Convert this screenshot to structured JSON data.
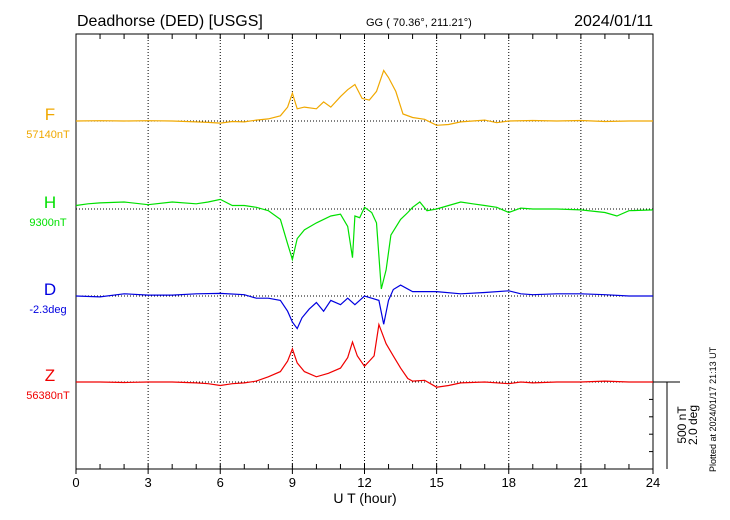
{
  "chart_data": {
    "type": "line",
    "title": "Deadhorse (DED)  [USGS]",
    "coords": "GG ( 70.36°, 211.21°)",
    "date": "2024/01/11",
    "xlabel": "U T (hour)",
    "xlim": [
      0,
      24
    ],
    "xticks": [
      "0",
      "3",
      "6",
      "9",
      "12",
      "15",
      "18",
      "21",
      "24"
    ],
    "grid": "dotted vertical every 3 h",
    "scale_label_nt": "500 nT",
    "scale_label_deg": "2.0 deg",
    "scale_nt": 500,
    "scale_deg": 2.0,
    "plotted_note": "Plotted at 2024/01/17 21:13 UT",
    "series": [
      {
        "name": "F",
        "baseline_label": "57140nT",
        "color": "#f0a800",
        "unit": "nT",
        "points": [
          [
            0,
            0
          ],
          [
            1,
            2
          ],
          [
            2,
            0
          ],
          [
            3,
            2
          ],
          [
            4,
            0
          ],
          [
            5,
            -5
          ],
          [
            5.5,
            -8
          ],
          [
            6,
            -12
          ],
          [
            6.5,
            -3
          ],
          [
            7,
            -5
          ],
          [
            7.5,
            5
          ],
          [
            8,
            12
          ],
          [
            8.5,
            30
          ],
          [
            8.8,
            80
          ],
          [
            9,
            160
          ],
          [
            9.2,
            70
          ],
          [
            9.5,
            80
          ],
          [
            10,
            70
          ],
          [
            10.3,
            110
          ],
          [
            10.6,
            80
          ],
          [
            11,
            140
          ],
          [
            11.3,
            180
          ],
          [
            11.6,
            210
          ],
          [
            11.9,
            130
          ],
          [
            12.2,
            120
          ],
          [
            12.5,
            170
          ],
          [
            12.8,
            290
          ],
          [
            13,
            250
          ],
          [
            13.3,
            170
          ],
          [
            13.6,
            40
          ],
          [
            14,
            20
          ],
          [
            14.5,
            10
          ],
          [
            15,
            -25
          ],
          [
            15.5,
            -20
          ],
          [
            16,
            -5
          ],
          [
            17,
            5
          ],
          [
            17.5,
            -10
          ],
          [
            18,
            0
          ],
          [
            19,
            3
          ],
          [
            20,
            0
          ],
          [
            21,
            3
          ],
          [
            22,
            -3
          ],
          [
            23,
            0
          ],
          [
            24,
            0
          ]
        ]
      },
      {
        "name": "H",
        "baseline_label": "9300nT",
        "color": "#00e000",
        "unit": "nT",
        "points": [
          [
            0,
            20
          ],
          [
            0.5,
            30
          ],
          [
            1,
            35
          ],
          [
            2,
            40
          ],
          [
            3,
            25
          ],
          [
            4,
            40
          ],
          [
            5,
            30
          ],
          [
            5.5,
            40
          ],
          [
            6,
            55
          ],
          [
            6.5,
            20
          ],
          [
            7,
            20
          ],
          [
            7.5,
            10
          ],
          [
            8,
            -10
          ],
          [
            8.5,
            -60
          ],
          [
            8.8,
            -200
          ],
          [
            9,
            -290
          ],
          [
            9.2,
            -170
          ],
          [
            9.5,
            -120
          ],
          [
            10,
            -80
          ],
          [
            10.3,
            -60
          ],
          [
            10.6,
            -40
          ],
          [
            11,
            -30
          ],
          [
            11.3,
            -100
          ],
          [
            11.5,
            -280
          ],
          [
            11.6,
            -40
          ],
          [
            11.8,
            -50
          ],
          [
            12,
            10
          ],
          [
            12.3,
            -20
          ],
          [
            12.5,
            -80
          ],
          [
            12.7,
            -460
          ],
          [
            12.9,
            -350
          ],
          [
            13.1,
            -150
          ],
          [
            13.5,
            -60
          ],
          [
            13.8,
            -20
          ],
          [
            14,
            10
          ],
          [
            14.3,
            40
          ],
          [
            14.6,
            -10
          ],
          [
            15,
            0
          ],
          [
            15.5,
            20
          ],
          [
            16,
            40
          ],
          [
            16.5,
            30
          ],
          [
            17,
            20
          ],
          [
            17.5,
            10
          ],
          [
            18,
            -20
          ],
          [
            18.5,
            5
          ],
          [
            19,
            0
          ],
          [
            20,
            0
          ],
          [
            21,
            -5
          ],
          [
            22,
            -20
          ],
          [
            22.5,
            -40
          ],
          [
            23,
            -10
          ],
          [
            24,
            -5
          ]
        ]
      },
      {
        "name": "D",
        "baseline_label": "-2.3deg",
        "color": "#0000e0",
        "unit": "deg",
        "points": [
          [
            0,
            0
          ],
          [
            1,
            -0.02
          ],
          [
            2,
            0.05
          ],
          [
            3,
            0.02
          ],
          [
            4,
            0.02
          ],
          [
            5,
            0.05
          ],
          [
            6,
            0.06
          ],
          [
            7,
            0.03
          ],
          [
            7.5,
            -0.05
          ],
          [
            8,
            -0.05
          ],
          [
            8.5,
            -0.1
          ],
          [
            8.8,
            -0.35
          ],
          [
            9,
            -0.6
          ],
          [
            9.2,
            -0.75
          ],
          [
            9.4,
            -0.5
          ],
          [
            9.7,
            -0.3
          ],
          [
            10,
            -0.15
          ],
          [
            10.3,
            -0.35
          ],
          [
            10.6,
            -0.1
          ],
          [
            11,
            -0.2
          ],
          [
            11.3,
            -0.05
          ],
          [
            11.6,
            -0.2
          ],
          [
            12,
            0
          ],
          [
            12.3,
            -0.05
          ],
          [
            12.6,
            -0.1
          ],
          [
            12.8,
            -0.65
          ],
          [
            13,
            -0.1
          ],
          [
            13.2,
            0.15
          ],
          [
            13.5,
            0.25
          ],
          [
            14,
            0.1
          ],
          [
            15,
            0.1
          ],
          [
            16,
            0.05
          ],
          [
            17,
            0.08
          ],
          [
            18,
            0.12
          ],
          [
            18.5,
            0.05
          ],
          [
            19,
            0.03
          ],
          [
            20,
            0.05
          ],
          [
            21,
            0.05
          ],
          [
            22,
            0.03
          ],
          [
            23,
            0
          ],
          [
            24,
            0
          ]
        ]
      },
      {
        "name": "Z",
        "baseline_label": "56380nT",
        "color": "#f00000",
        "unit": "nT",
        "points": [
          [
            0,
            0
          ],
          [
            1,
            0
          ],
          [
            2,
            -3
          ],
          [
            3,
            0
          ],
          [
            4,
            0
          ],
          [
            5,
            -5
          ],
          [
            5.5,
            -10
          ],
          [
            6,
            -20
          ],
          [
            6.5,
            -10
          ],
          [
            7,
            -5
          ],
          [
            7.5,
            5
          ],
          [
            8,
            30
          ],
          [
            8.5,
            60
          ],
          [
            8.8,
            120
          ],
          [
            9,
            190
          ],
          [
            9.2,
            110
          ],
          [
            9.5,
            60
          ],
          [
            10,
            30
          ],
          [
            10.5,
            50
          ],
          [
            11,
            80
          ],
          [
            11.3,
            140
          ],
          [
            11.5,
            230
          ],
          [
            11.7,
            150
          ],
          [
            12,
            90
          ],
          [
            12.2,
            120
          ],
          [
            12.4,
            150
          ],
          [
            12.6,
            330
          ],
          [
            12.9,
            220
          ],
          [
            13.2,
            150
          ],
          [
            13.5,
            80
          ],
          [
            13.8,
            20
          ],
          [
            14,
            5
          ],
          [
            14.5,
            10
          ],
          [
            15,
            -30
          ],
          [
            15.5,
            -20
          ],
          [
            16,
            -5
          ],
          [
            17,
            0
          ],
          [
            18,
            -10
          ],
          [
            18.5,
            0
          ],
          [
            19,
            -5
          ],
          [
            20,
            0
          ],
          [
            21,
            0
          ],
          [
            22,
            5
          ],
          [
            23,
            0
          ],
          [
            24,
            0
          ]
        ]
      }
    ]
  }
}
